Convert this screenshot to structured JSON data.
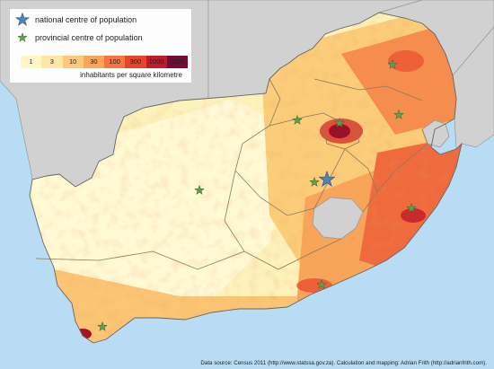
{
  "legend": {
    "national_label": "national centre of population",
    "provincial_label": "provincial centre of population",
    "scale_ticks": [
      "1",
      "3",
      "10",
      "30",
      "100",
      "300",
      "1000",
      "3000"
    ],
    "scale_caption": "inhabitants per square kilometre",
    "scale_colors": [
      "#fff7c8",
      "#fde7a5",
      "#fdc979",
      "#fca55a",
      "#f9743f",
      "#e8432c",
      "#c11a28",
      "#7a0a2f"
    ]
  },
  "source": "Data source: Census 2011 (http://www.statssa.gov.za). Calculation and mapping: Adrian Frith (http://adrianfrith.com).",
  "colors": {
    "ocean": "#b7dcf3",
    "foreign_land": "#d1d1d1",
    "national_star": "#4f84b8",
    "provincial_star": "#5aa04e"
  }
}
